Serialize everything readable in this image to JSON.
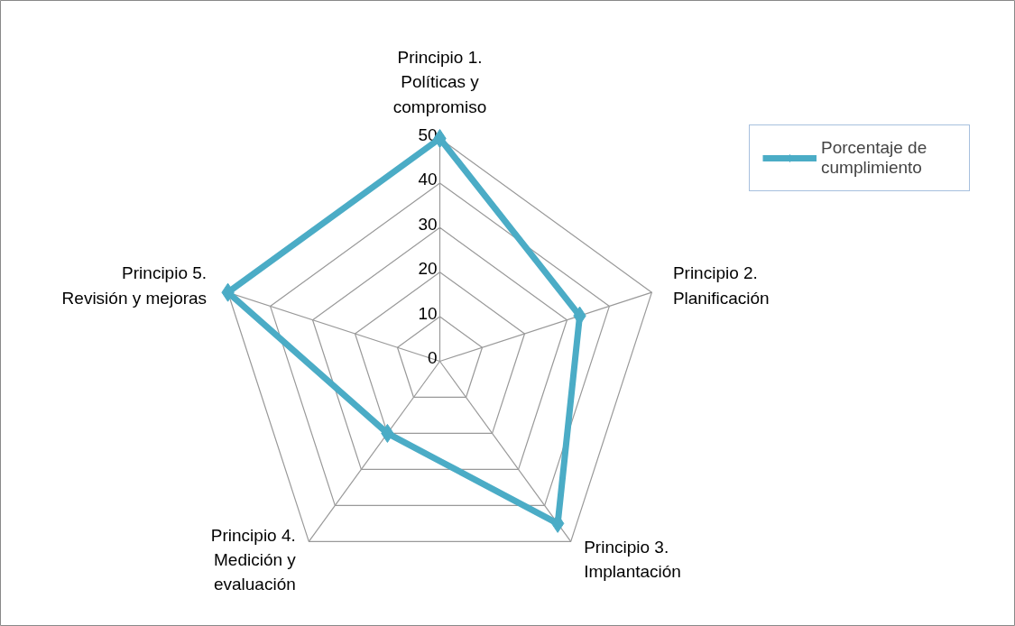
{
  "chart_data": {
    "type": "radar",
    "categories": [
      "Principio 1. Políticas y compromiso",
      "Principio 2. Planificación",
      "Principio 3. Implantación",
      "Principio 4. Medición y evaluación",
      "Principio 5. Revisión y mejoras"
    ],
    "series": [
      {
        "name": "Porcentaje de cumplimiento",
        "color": "#4bacc6",
        "values": [
          50,
          33,
          45,
          20,
          50
        ]
      }
    ],
    "ylim": [
      0,
      50
    ],
    "yticks": [
      0,
      10,
      20,
      30,
      40,
      50
    ],
    "grid": true,
    "legend": "top right",
    "marker": "diamond",
    "line_style": "solid"
  }
}
